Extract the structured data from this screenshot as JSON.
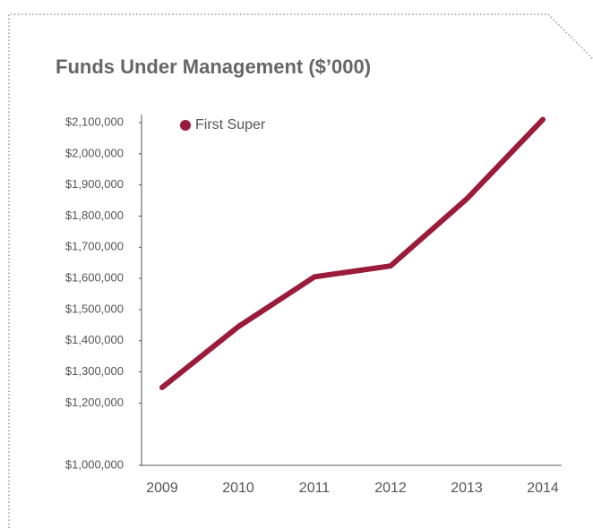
{
  "chart_data": {
    "type": "line",
    "title": "Funds Under Management ($’000)",
    "categories": [
      "2009",
      "2010",
      "2011",
      "2012",
      "2013",
      "2014"
    ],
    "series": [
      {
        "name": "First Super",
        "color": "#9b1b3a",
        "values": [
          1250000,
          1445000,
          1605000,
          1640000,
          1855000,
          2110000
        ]
      }
    ],
    "ylim": [
      1000000,
      2100000
    ],
    "yticks": [
      {
        "value": 1000000,
        "label": "$1,000,000"
      },
      {
        "value": 1200000,
        "label": "$1,200,000"
      },
      {
        "value": 1300000,
        "label": "$1,300,000"
      },
      {
        "value": 1400000,
        "label": "$1,400,000"
      },
      {
        "value": 1500000,
        "label": "$1,500,000"
      },
      {
        "value": 1600000,
        "label": "$1,600,000"
      },
      {
        "value": 1700000,
        "label": "$1,700,000"
      },
      {
        "value": 1800000,
        "label": "$1,800,000"
      },
      {
        "value": 1900000,
        "label": "$1,900,000"
      },
      {
        "value": 2000000,
        "label": "$2,000,000"
      },
      {
        "value": 2100000,
        "label": "$2,100,000"
      }
    ],
    "legend": "top-left"
  }
}
